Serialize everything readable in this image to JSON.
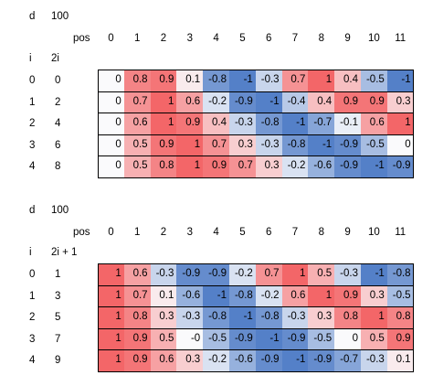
{
  "tables": [
    {
      "d_label": "d",
      "d_value": 100,
      "pos_label": "pos",
      "pos": [
        0,
        1,
        2,
        3,
        4,
        5,
        6,
        7,
        8,
        9,
        10,
        11
      ],
      "i_label": "i",
      "k_label": "2i",
      "rows": [
        {
          "i": 0,
          "k": 0,
          "cells": [
            "0",
            "0.8",
            "0.9",
            "0.1",
            "-0.8",
            "-1",
            "-0.3",
            "0.7",
            "1",
            "0.4",
            "-0.5",
            "-1"
          ]
        },
        {
          "i": 1,
          "k": 2,
          "cells": [
            "0",
            "0.7",
            "1",
            "0.6",
            "-0.2",
            "-0.9",
            "-1",
            "-0.4",
            "0.4",
            "0.9",
            "0.9",
            "0.3"
          ]
        },
        {
          "i": 2,
          "k": 4,
          "cells": [
            "0",
            "0.6",
            "1",
            "0.9",
            "0.4",
            "-0.3",
            "-0.8",
            "-1",
            "-0.7",
            "-0.1",
            "0.6",
            "1"
          ]
        },
        {
          "i": 3,
          "k": 6,
          "cells": [
            "0",
            "0.5",
            "0.9",
            "1",
            "0.7",
            "0.3",
            "-0.3",
            "-0.8",
            "-1",
            "-0.9",
            "-0.5",
            "0"
          ]
        },
        {
          "i": 4,
          "k": 8,
          "cells": [
            "0",
            "0.5",
            "0.8",
            "1",
            "0.9",
            "0.7",
            "0.3",
            "-0.2",
            "-0.6",
            "-0.9",
            "-1",
            "-0.9"
          ]
        }
      ]
    },
    {
      "d_label": "d",
      "d_value": 100,
      "pos_label": "pos",
      "pos": [
        0,
        1,
        2,
        3,
        4,
        5,
        6,
        7,
        8,
        9,
        10,
        11
      ],
      "i_label": "i",
      "k_label": "2i + 1",
      "rows": [
        {
          "i": 0,
          "k": 1,
          "cells": [
            "1",
            "0.6",
            "-0.3",
            "-0.9",
            "-0.9",
            "-0.2",
            "0.7",
            "1",
            "0.5",
            "-0.3",
            "-1",
            "-0.8"
          ]
        },
        {
          "i": 1,
          "k": 3,
          "cells": [
            "1",
            "0.7",
            "0.1",
            "-0.6",
            "-1",
            "-0.8",
            "-0.2",
            "0.6",
            "1",
            "0.9",
            "0.3",
            "-0.5"
          ]
        },
        {
          "i": 2,
          "k": 5,
          "cells": [
            "1",
            "0.8",
            "0.3",
            "-0.3",
            "-0.8",
            "-1",
            "-0.8",
            "-0.3",
            "0.3",
            "0.8",
            "1",
            "0.8"
          ]
        },
        {
          "i": 3,
          "k": 7,
          "cells": [
            "1",
            "0.9",
            "0.5",
            "-0",
            "-0.5",
            "-0.9",
            "-1",
            "-0.9",
            "-0.5",
            "0",
            "0.5",
            "0.9"
          ]
        },
        {
          "i": 4,
          "k": 9,
          "cells": [
            "1",
            "0.9",
            "0.6",
            "0.3",
            "-0.2",
            "-0.6",
            "-0.9",
            "-1",
            "-0.9",
            "-0.7",
            "-0.3",
            "0.1"
          ]
        }
      ]
    }
  ]
}
